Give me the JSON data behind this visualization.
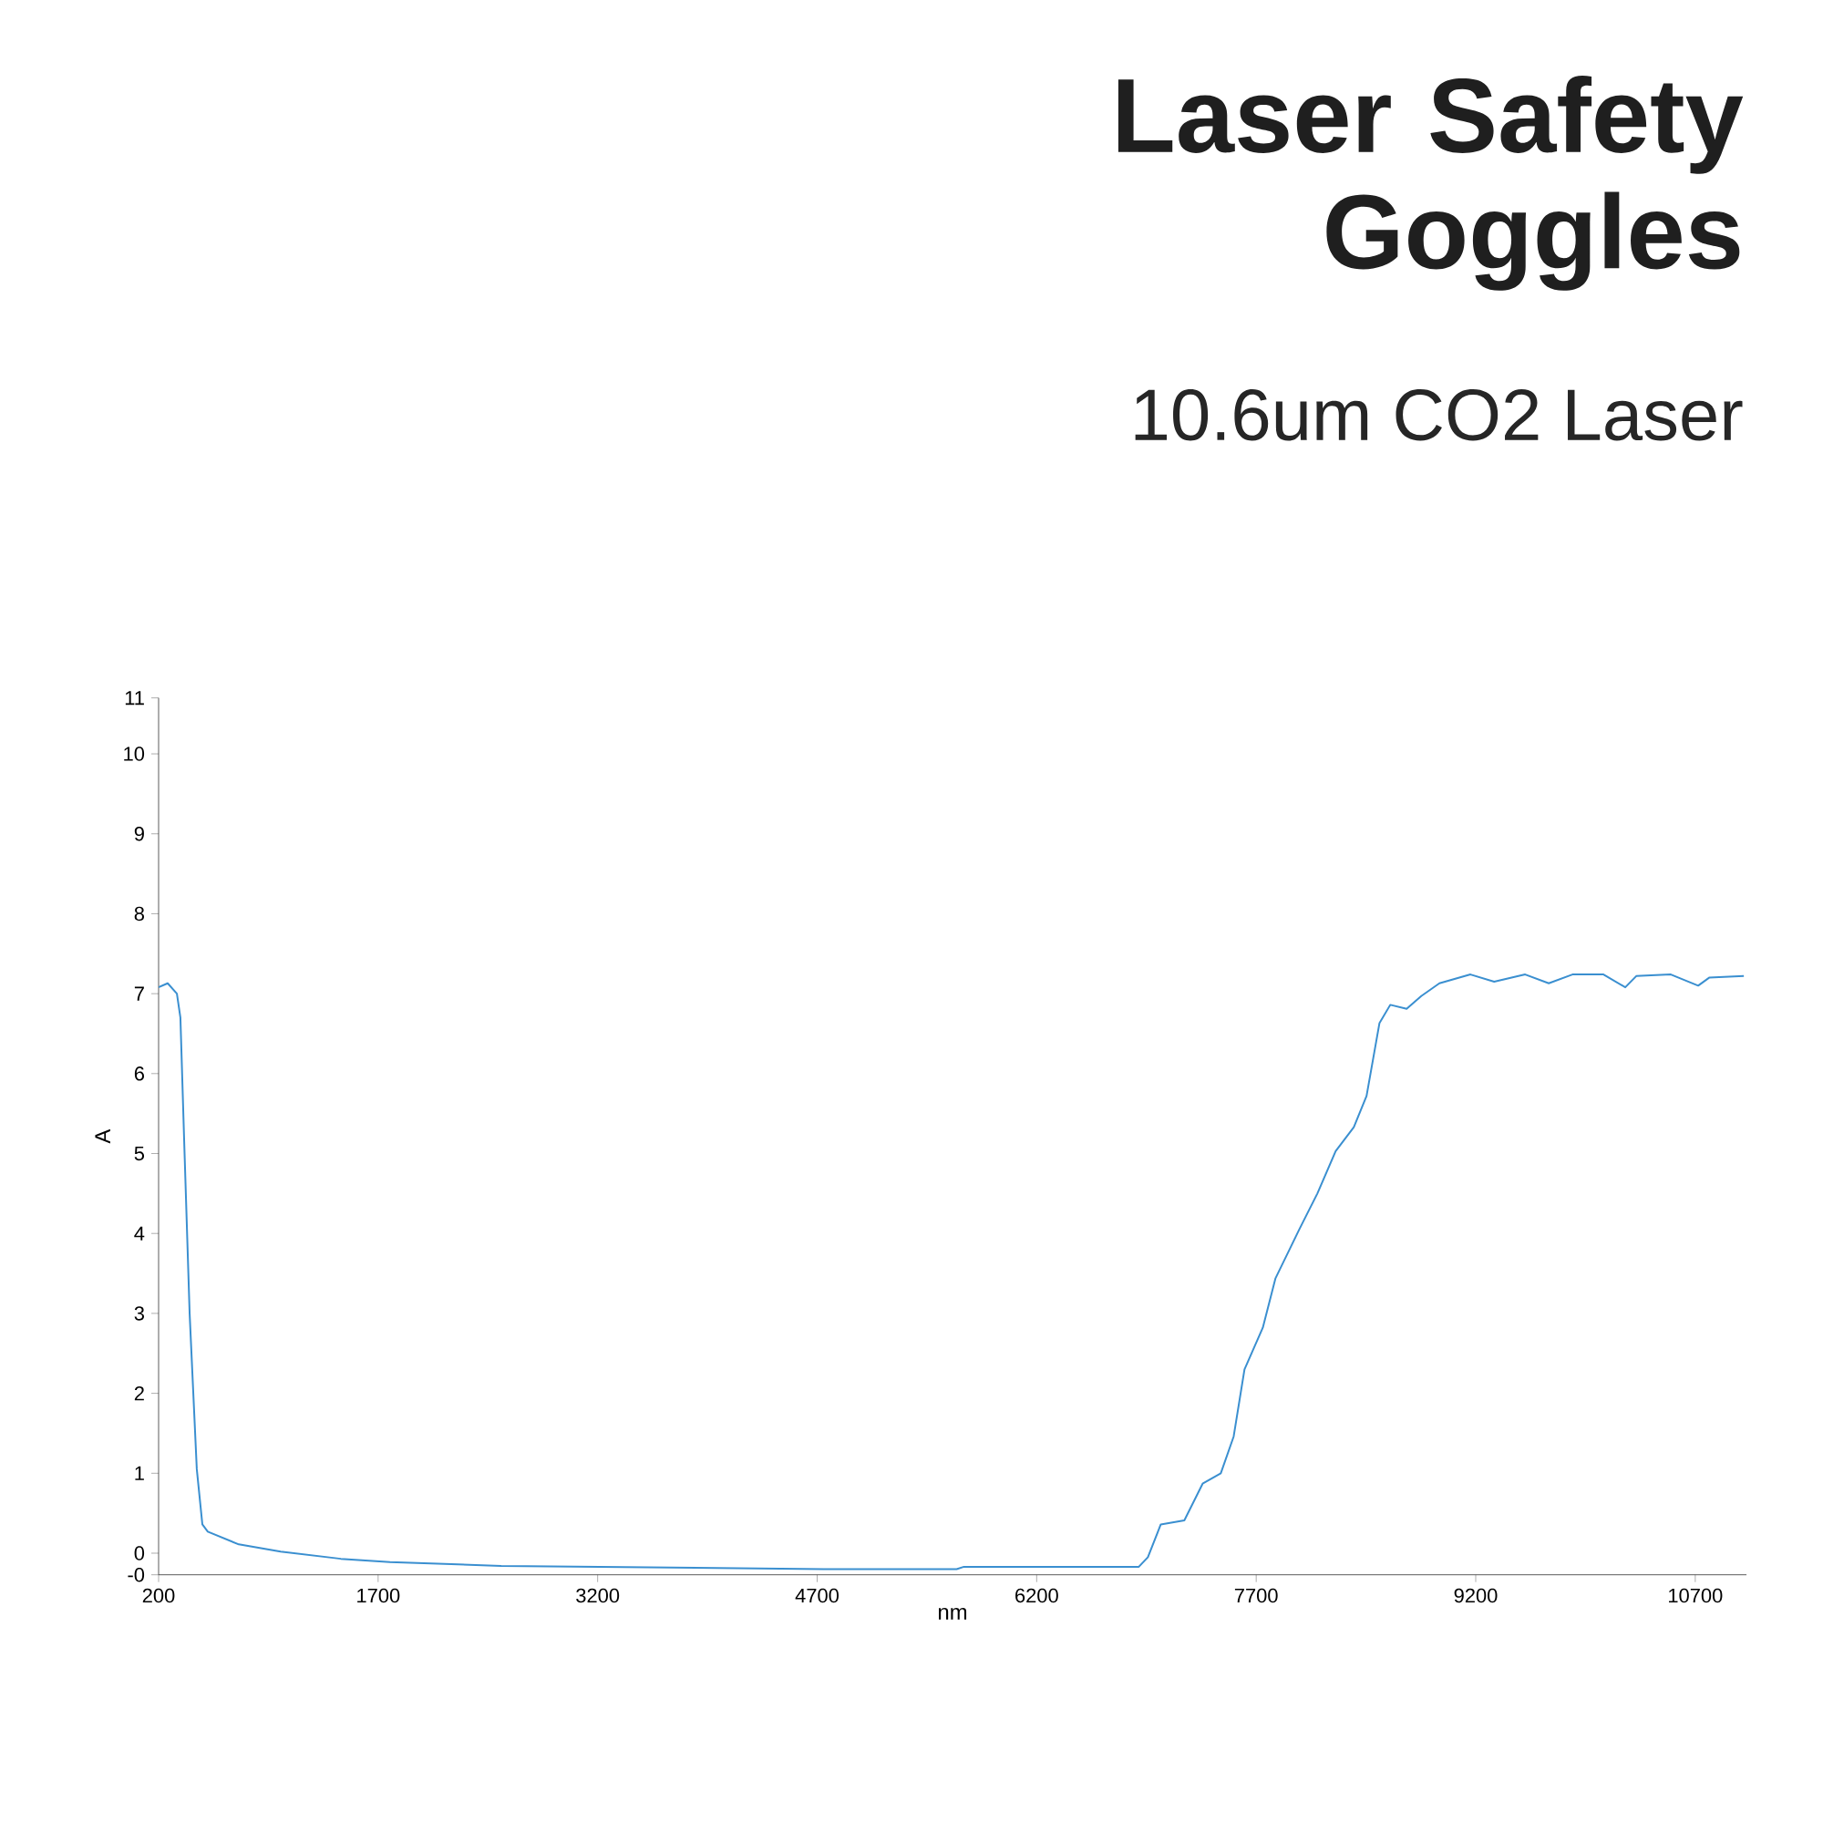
{
  "chart_data": {
    "type": "line",
    "title": "Laser Safety Goggles",
    "subtitle": "10.6um CO2 Laser",
    "xlabel": "nm",
    "ylabel": "A",
    "x": [
      200,
      262,
      325,
      349,
      374,
      412,
      461,
      499,
      536,
      748,
      1034,
      1445,
      1781,
      2541,
      3213,
      4744,
      5653,
      5703,
      6898,
      6960,
      7048,
      7209,
      7334,
      7458,
      7546,
      7620,
      7745,
      7832,
      7994,
      8118,
      8243,
      8367,
      8454,
      8542,
      8616,
      8728,
      8828,
      8952,
      9164,
      9326,
      9538,
      9699,
      9861,
      10073,
      10222,
      10297,
      10533,
      10720,
      10795,
      11032
    ],
    "values": [
      7.08,
      7.13,
      7.0,
      6.7,
      5.2,
      3.0,
      1.05,
      0.36,
      0.27,
      0.11,
      0.02,
      -0.07,
      -0.11,
      -0.16,
      -0.17,
      -0.2,
      -0.2,
      -0.17,
      -0.17,
      -0.05,
      0.36,
      0.41,
      0.87,
      1.0,
      1.46,
      2.3,
      2.82,
      3.44,
      4.05,
      4.5,
      5.03,
      5.33,
      5.72,
      6.63,
      6.86,
      6.81,
      6.97,
      7.13,
      7.24,
      7.15,
      7.24,
      7.13,
      7.24,
      7.24,
      7.08,
      7.22,
      7.24,
      7.1,
      7.2,
      7.22
    ],
    "color": "#3a8fd0",
    "xlim": [
      200,
      11050
    ],
    "ylim": [
      -0.27,
      10.7
    ],
    "xticks": [
      200,
      1700,
      3200,
      4700,
      6200,
      7700,
      9200,
      10700
    ],
    "yticks": [
      {
        "value": -0.27,
        "label": "-0"
      },
      0,
      1,
      2,
      3,
      4,
      5,
      6,
      7,
      8,
      9,
      10,
      {
        "value": 10.7,
        "label": "11"
      }
    ]
  }
}
